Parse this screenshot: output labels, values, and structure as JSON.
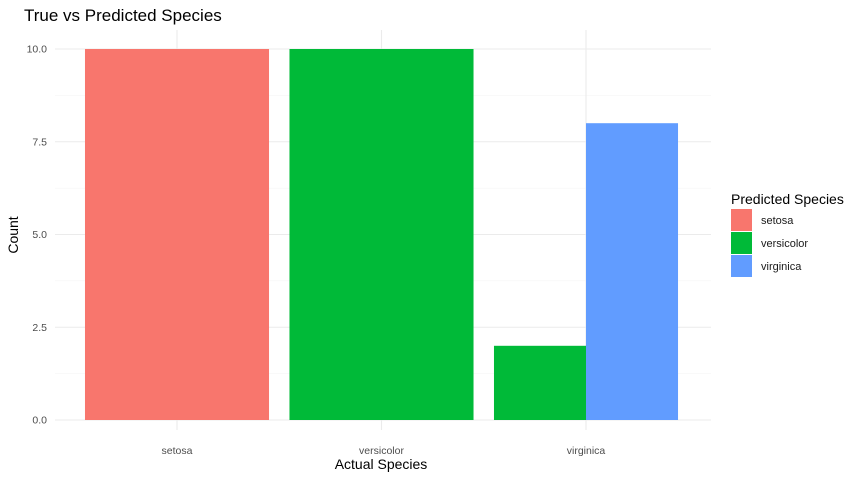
{
  "chart_data": {
    "type": "bar",
    "title": "True vs Predicted Species",
    "xlabel": "Actual Species",
    "ylabel": "Count",
    "categories": [
      "setosa",
      "versicolor",
      "virginica"
    ],
    "ylim": [
      0,
      10
    ],
    "yticks": [
      "0.0",
      "2.5",
      "5.0",
      "7.5",
      "10.0"
    ],
    "ytick_values": [
      0,
      2.5,
      5,
      7.5,
      10
    ],
    "grid": true,
    "bar_mode": "dodge",
    "legend": {
      "title": "Predicted Species",
      "placement": "right"
    },
    "series": [
      {
        "name": "setosa",
        "color": "#F8766D",
        "values": [
          10,
          null,
          null
        ]
      },
      {
        "name": "versicolor",
        "color": "#00BA38",
        "values": [
          null,
          10,
          2
        ]
      },
      {
        "name": "virginica",
        "color": "#619CFF",
        "values": [
          null,
          null,
          8
        ]
      }
    ]
  }
}
